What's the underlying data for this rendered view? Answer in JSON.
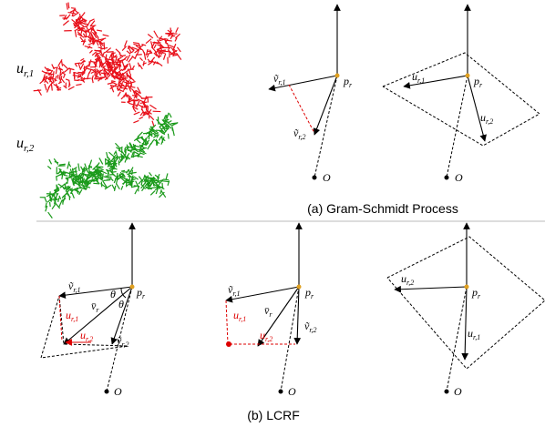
{
  "feature_labels": [
    {
      "main": "u",
      "sub": "r,1"
    },
    {
      "main": "u",
      "sub": "r,2"
    }
  ],
  "panel_a1": {
    "v1": {
      "main": "ṽ",
      "sub": "r,1"
    },
    "v2": {
      "main": "ṽ",
      "sub": "r,2"
    },
    "p": {
      "main": "p",
      "sub": "r"
    },
    "o": "O"
  },
  "panel_a2": {
    "u1": {
      "main": "u",
      "sub": "r,1"
    },
    "u2": {
      "main": "u",
      "sub": "r,2"
    },
    "p": {
      "main": "p",
      "sub": "r"
    },
    "o": "O"
  },
  "caption_a": "(a)  Gram-Schmidt Process",
  "panel_b1": {
    "v1": {
      "main": "ṽ",
      "sub": "r,1"
    },
    "vbar": {
      "main": "v̄",
      "sub": "r"
    },
    "v2": {
      "main": "ṽ",
      "sub": "r,2"
    },
    "u1": {
      "main": "u",
      "sub": "r,1"
    },
    "u2": {
      "main": "u",
      "sub": "r,2"
    },
    "theta1": "θ",
    "theta2": "θ",
    "p": {
      "main": "p",
      "sub": "r"
    },
    "o": "O"
  },
  "panel_b2": {
    "v1": {
      "main": "ṽ",
      "sub": "r,1"
    },
    "vbar": {
      "main": "v̄",
      "sub": "r"
    },
    "v2": {
      "main": "ṽ",
      "sub": "r,2"
    },
    "u1": {
      "main": "u",
      "sub": "r,1"
    },
    "u2": {
      "main": "u",
      "sub": "r,2"
    },
    "p": {
      "main": "p",
      "sub": "r"
    },
    "o": "O"
  },
  "panel_b3": {
    "u1": {
      "main": "u",
      "sub": "r,1"
    },
    "u2": {
      "main": "u",
      "sub": "r,2"
    },
    "p": {
      "main": "p",
      "sub": "r"
    },
    "o": "O"
  },
  "caption_b": "(b)  LCRF"
}
